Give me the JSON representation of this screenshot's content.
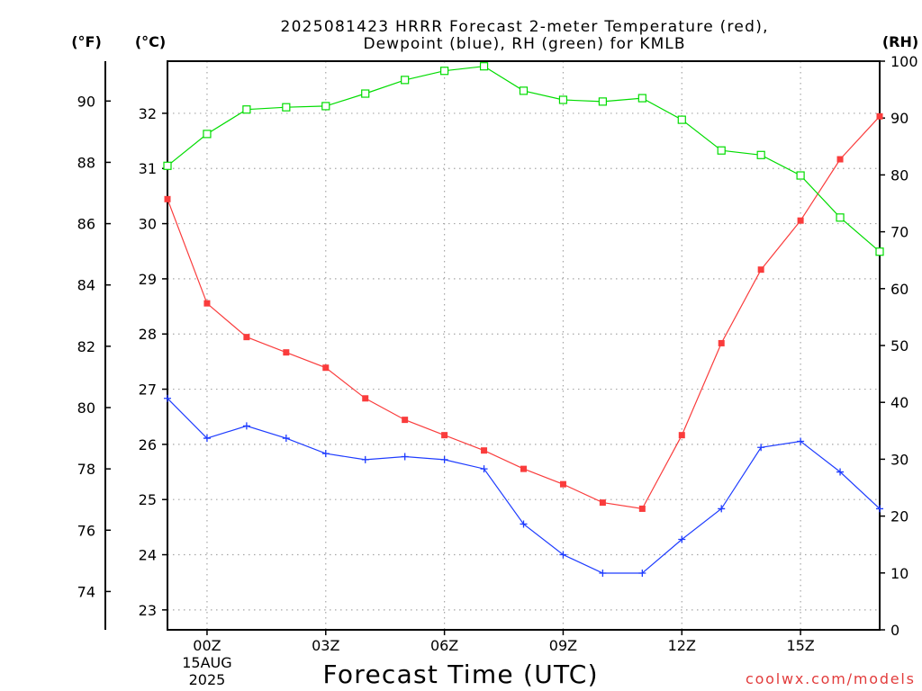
{
  "source_label": "coolwx.com/models",
  "chart_data": {
    "type": "line",
    "title": [
      "2025081423 HRRR Forecast 2-meter Temperature (red),",
      "Dewpoint (blue), RH (green) for KMLB"
    ],
    "xlabel": "Forecast Time (UTC)",
    "x": [
      23,
      0,
      1,
      2,
      3,
      4,
      5,
      6,
      7,
      8,
      9,
      10,
      11,
      12,
      13,
      14,
      15,
      16,
      17
    ],
    "x_ticks": [
      "00Z",
      "03Z",
      "06Z",
      "09Z",
      "12Z",
      "15Z"
    ],
    "date_label": {
      "x": 0,
      "lines": [
        "15AUG",
        "2025"
      ]
    },
    "y_left": {
      "label": "(°F)",
      "ticks": [
        74,
        76,
        78,
        80,
        82,
        84,
        86,
        88,
        90
      ],
      "lim": [
        72.75,
        91.3
      ]
    },
    "y_left_secondary": {
      "label": "(°C)",
      "ticks": [
        23,
        24,
        25,
        26,
        27,
        28,
        29,
        30,
        31,
        32
      ]
    },
    "y_right": {
      "label": "(RH)",
      "ticks": [
        0,
        10,
        20,
        30,
        40,
        50,
        60,
        70,
        80,
        90,
        100
      ],
      "lim": [
        0,
        100
      ]
    },
    "grid": true,
    "series": [
      {
        "color": "#fa3c3c",
        "marker": "filled-square",
        "y_axis": "left",
        "values": [
          86.8,
          83.4,
          82.3,
          81.8,
          81.3,
          80.3,
          79.6,
          79.1,
          78.6,
          78.0,
          77.5,
          76.9,
          76.7,
          79.1,
          82.1,
          84.5,
          86.1,
          88.1,
          89.5
        ]
      },
      {
        "color": "#1e3cff",
        "marker": "plus",
        "y_axis": "left",
        "values": [
          80.3,
          79.0,
          79.4,
          79.0,
          78.5,
          78.3,
          78.4,
          78.3,
          78.0,
          76.2,
          75.2,
          74.6,
          74.6,
          75.7,
          76.7,
          78.7,
          78.9,
          77.9,
          76.7
        ]
      },
      {
        "color": "#00dc00",
        "marker": "open-square",
        "y_axis": "right",
        "values": [
          81.6,
          87.2,
          91.5,
          91.9,
          92.1,
          94.3,
          96.7,
          98.3,
          99.1,
          94.8,
          93.2,
          92.9,
          93.5,
          89.7,
          84.3,
          83.5,
          79.9,
          72.5,
          66.5
        ]
      }
    ]
  }
}
